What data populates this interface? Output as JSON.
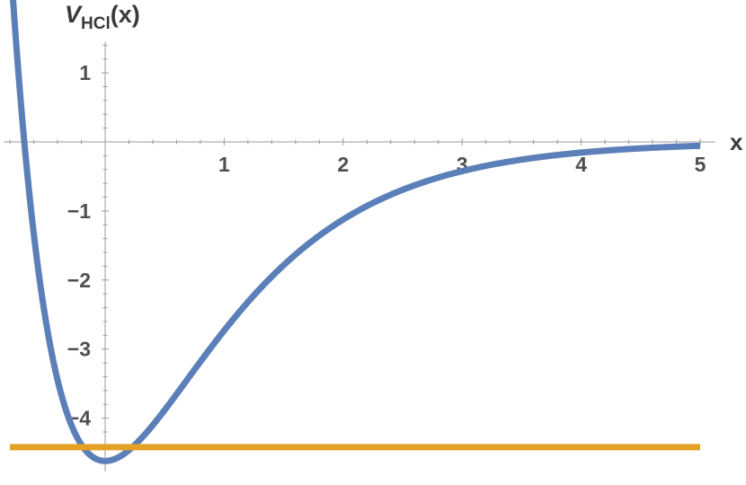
{
  "chart_data": {
    "type": "line",
    "title": "",
    "xlabel": "x",
    "ylabel": {
      "main": "V",
      "subscript": "HCl",
      "suffix": "(x)"
    },
    "xlim": [
      -0.85,
      5.05
    ],
    "ylim": [
      -4.75,
      1.45
    ],
    "x_ticks": [
      1,
      2,
      3,
      4,
      5
    ],
    "y_ticks": [
      -4,
      -3,
      -2,
      -1,
      1
    ],
    "x_tick_labels": [
      "1",
      "2",
      "3",
      "4",
      "5"
    ],
    "y_tick_labels": [
      "−4",
      "−3",
      "−2",
      "−1",
      "1"
    ],
    "grid": false,
    "series": [
      {
        "kind": "morse-curve",
        "color": "#5b7fb8",
        "depth": 4.62,
        "minimum_x": 0.0,
        "a": 1.02,
        "x": [
          -0.75,
          -0.5,
          -0.25,
          0.0,
          0.25,
          0.5,
          1.0,
          1.5,
          2.0,
          2.5,
          3.0,
          3.5,
          4.0,
          4.5,
          5.0
        ],
        "y": [
          1.15,
          -2.3,
          -4.1,
          -4.62,
          -4.45,
          -3.95,
          -2.75,
          -1.77,
          -1.08,
          -0.65,
          -0.38,
          -0.23,
          -0.14,
          -0.08,
          -0.05
        ]
      },
      {
        "kind": "horizontal-line",
        "color": "#e5a123",
        "y": -4.42,
        "x_range": [
          -0.8,
          5.0
        ]
      }
    ]
  }
}
